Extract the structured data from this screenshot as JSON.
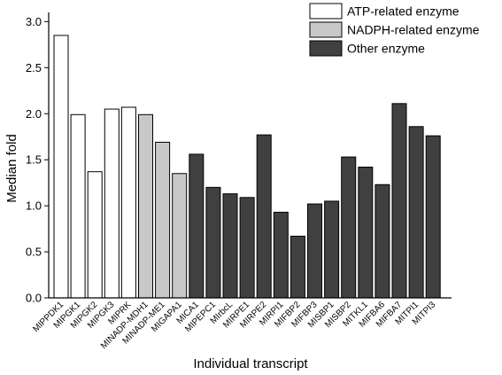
{
  "chart_data": {
    "type": "bar",
    "title": "",
    "xlabel": "Individual transcript",
    "ylabel": "Median fold",
    "ylim": [
      0,
      3.1
    ],
    "yticks": [
      0.0,
      0.5,
      1.0,
      1.5,
      2.0,
      2.5,
      3.0
    ],
    "ytick_labels": [
      "0.0",
      "0.5",
      "1.0",
      "1.5",
      "2.0",
      "2.5",
      "3.0"
    ],
    "grid": false,
    "legend_position": "top-right",
    "groups": [
      {
        "name": "ATP-related enzyme",
        "color": "#ffffff"
      },
      {
        "name": "NADPH-related enzyme",
        "color": "#c8c8c8"
      },
      {
        "name": "Other enzyme",
        "color": "#404040"
      }
    ],
    "categories": [
      "MIPPDK1",
      "MIPGK1",
      "MIPGK2",
      "MIPGK3",
      "MIPRK",
      "MINADP-MDH1",
      "MINADP-ME1",
      "MIGAPA1",
      "MICA1",
      "MIPEPC1",
      "MIrbcL",
      "MIRPE1",
      "MIRPE2",
      "MIRPI1",
      "MIFBP2",
      "MIFBP3",
      "MISBP1",
      "MISBP2",
      "MITKL1",
      "MIFBA6",
      "MIFBA7",
      "MITPI1",
      "MITPI3"
    ],
    "values": [
      2.85,
      1.99,
      1.37,
      2.05,
      2.07,
      1.99,
      1.69,
      1.35,
      1.56,
      1.2,
      1.13,
      1.09,
      1.77,
      0.93,
      0.67,
      1.02,
      1.05,
      1.53,
      1.42,
      1.23,
      2.11,
      1.86,
      1.76
    ],
    "group_index": [
      0,
      0,
      0,
      0,
      0,
      1,
      1,
      1,
      2,
      2,
      2,
      2,
      2,
      2,
      2,
      2,
      2,
      2,
      2,
      2,
      2,
      2,
      2
    ]
  }
}
